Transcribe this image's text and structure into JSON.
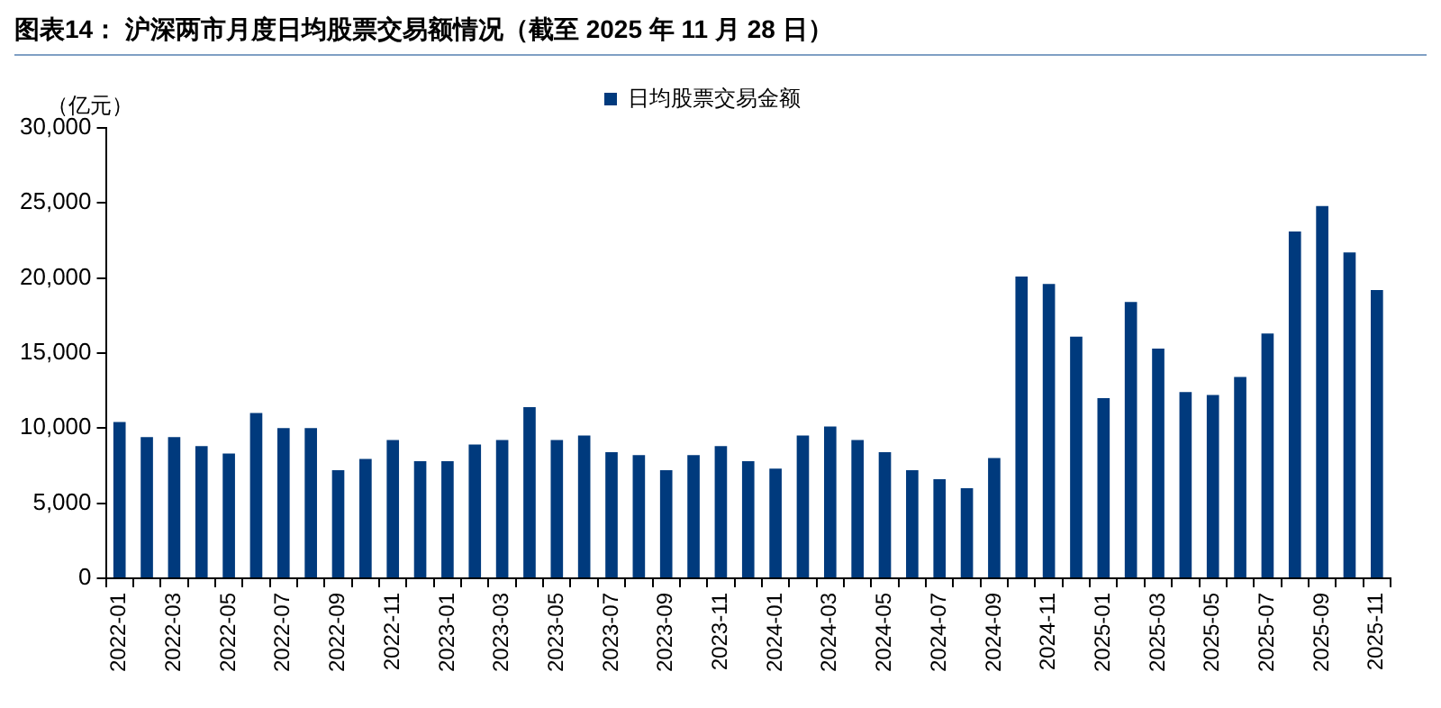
{
  "chart_data": {
    "type": "bar",
    "title": "图表14：  沪深两市月度日均股票交易额情况（截至 2025 年 11 月 28 日）",
    "ylabel": "（亿元）",
    "categories": [
      "2022-01",
      null,
      "2022-03",
      null,
      "2022-05",
      null,
      "2022-07",
      null,
      "2022-09",
      null,
      "2022-11",
      null,
      "2023-01",
      null,
      "2023-03",
      null,
      "2023-05",
      null,
      "2023-07",
      null,
      "2023-09",
      null,
      "2023-11",
      null,
      "2024-01",
      null,
      "2024-03",
      null,
      "2024-05",
      null,
      "2024-07",
      null,
      "2024-09",
      null,
      "2024-11",
      null,
      "2025-01",
      null,
      "2025-03",
      null,
      "2025-05",
      null,
      "2025-07",
      null,
      "2025-09",
      null,
      "2025-11"
    ],
    "series": [
      {
        "name": "日均股票交易金额",
        "color": "#003a7d",
        "values": [
          10400,
          9400,
          9400,
          8800,
          8300,
          11000,
          10000,
          10000,
          7200,
          7950,
          9200,
          7800,
          7800,
          8900,
          9200,
          11400,
          9200,
          9500,
          8400,
          8200,
          7200,
          8200,
          8800,
          7800,
          7300,
          9500,
          10100,
          9200,
          8400,
          7200,
          6600,
          6000,
          8000,
          20100,
          19600,
          16100,
          12000,
          18400,
          15300,
          12400,
          12200,
          13400,
          16300,
          23100,
          24800,
          21700,
          19200
        ]
      }
    ],
    "ylim": [
      0,
      30000
    ],
    "yticks": [
      0,
      {
        "value": 5000,
        "label": "5,000"
      },
      {
        "value": 10000,
        "label": "10,000"
      },
      {
        "value": 15000,
        "label": "15,000"
      },
      {
        "value": 20000,
        "label": "20,000"
      },
      {
        "value": 25000,
        "label": "25,000"
      },
      {
        "value": 30000,
        "label": "30,000"
      }
    ],
    "grid": false,
    "legend": "top"
  }
}
